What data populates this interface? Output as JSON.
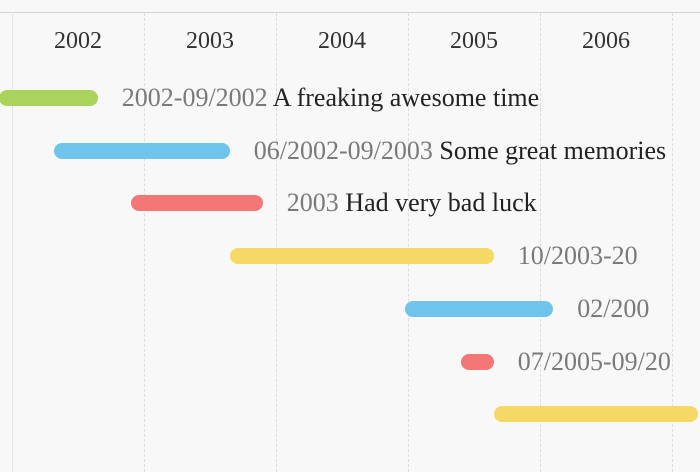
{
  "chart_data": {
    "type": "timeline",
    "years": [
      "2002",
      "2003",
      "2004",
      "2005",
      "2006"
    ],
    "events": [
      {
        "date_label": "2002-09/2002",
        "title": "A freaking awesome time",
        "start": 2001.9,
        "end": 2002.65,
        "color": "#a9d35a"
      },
      {
        "date_label": "06/2002-09/2003",
        "title": "Some great memories",
        "start": 2002.32,
        "end": 2003.65,
        "color": "#6ec4ea"
      },
      {
        "date_label": "2003",
        "title": "Had very bad luck",
        "start": 2002.9,
        "end": 2003.9,
        "color": "#f47777"
      },
      {
        "date_label": "10/2003-20",
        "title": "",
        "start": 2003.65,
        "end": 2005.65,
        "color": "#f5d865"
      },
      {
        "date_label": "02/200",
        "title": "",
        "start": 2004.98,
        "end": 2006.1,
        "color": "#6ec4ea"
      },
      {
        "date_label": "07/2005-09/20",
        "title": "",
        "start": 2005.4,
        "end": 2005.65,
        "color": "#f47777"
      },
      {
        "date_label": "",
        "title": "",
        "start": 2005.65,
        "end": 2007.2,
        "color": "#f5d865"
      }
    ]
  }
}
